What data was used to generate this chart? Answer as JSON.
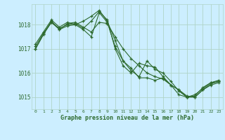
{
  "background_color": "#cceeff",
  "grid_color": "#b0d4c8",
  "line_color": "#2d6a2d",
  "marker_color": "#2d6a2d",
  "xlabel": "Graphe pression niveau de la mer (hPa)",
  "xlabel_color": "#2d6a2d",
  "tick_color": "#2d6a2d",
  "ylim": [
    1014.5,
    1018.85
  ],
  "xlim": [
    -0.5,
    23.5
  ],
  "yticks": [
    1015,
    1016,
    1017,
    1018
  ],
  "xticks": [
    0,
    1,
    2,
    3,
    4,
    5,
    6,
    7,
    8,
    9,
    10,
    11,
    12,
    13,
    14,
    15,
    16,
    17,
    18,
    19,
    20,
    21,
    22,
    23
  ],
  "series": [
    [
      1017.2,
      1017.7,
      1018.2,
      1017.9,
      1018.1,
      1018.0,
      1017.8,
      1017.5,
      1018.5,
      1018.1,
      1017.1,
      1016.5,
      1016.2,
      1015.8,
      1015.8,
      1015.7,
      1015.8,
      1015.5,
      1015.3,
      1015.0,
      1015.0,
      1015.3,
      1015.5,
      1015.6
    ],
    [
      1017.0,
      1017.6,
      1018.1,
      1017.85,
      1018.0,
      1018.05,
      1017.85,
      1018.15,
      1018.55,
      1018.2,
      1017.0,
      1016.3,
      1016.0,
      1016.4,
      1016.3,
      1016.25,
      1015.85,
      1015.5,
      1015.1,
      1015.0,
      1015.1,
      1015.35,
      1015.6,
      1015.7
    ],
    [
      1017.0,
      1017.6,
      1018.15,
      1017.8,
      1017.95,
      1018.0,
      1018.15,
      1018.35,
      1018.6,
      1018.15,
      1017.35,
      1016.5,
      1016.1,
      1015.85,
      1016.5,
      1016.15,
      1016.0,
      1015.65,
      1015.25,
      1015.0,
      1015.05,
      1015.4,
      1015.6,
      1015.65
    ],
    [
      1017.1,
      1017.65,
      1018.1,
      1017.8,
      1018.05,
      1018.1,
      1017.9,
      1017.7,
      1018.1,
      1018.05,
      1017.5,
      1017.0,
      1016.6,
      1016.3,
      1016.0,
      1015.85,
      1015.75,
      1015.5,
      1015.3,
      1015.05,
      1015.0,
      1015.3,
      1015.55,
      1015.65
    ]
  ]
}
